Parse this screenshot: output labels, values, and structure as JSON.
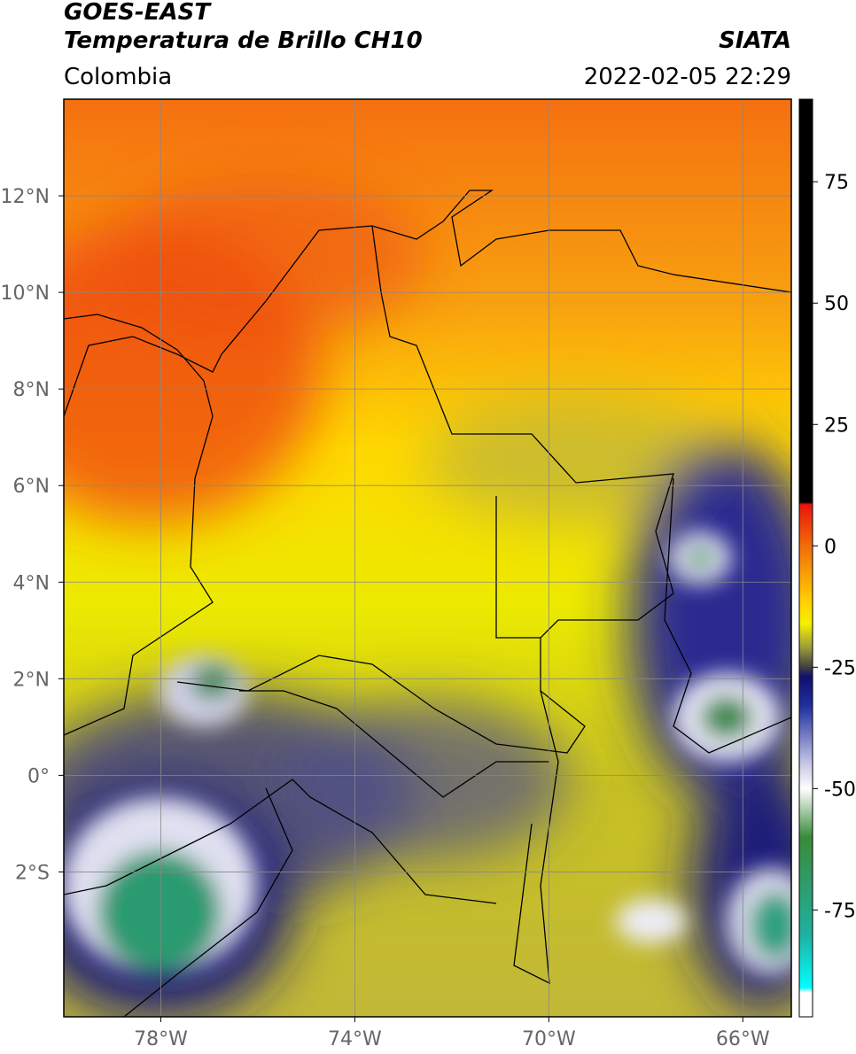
{
  "header": {
    "satellite": "GOES-EAST",
    "product": "Temperatura de Brillo CH10",
    "source": "SIATA",
    "region": "Colombia",
    "datetime": "2022-02-05 22:29"
  },
  "map": {
    "lon_lim": [
      -80,
      -65
    ],
    "lat_lim": [
      -5,
      14
    ],
    "grid": true,
    "lon_ticks": [
      {
        "value": -78,
        "label": "78°W"
      },
      {
        "value": -74,
        "label": "74°W"
      },
      {
        "value": -70,
        "label": "70°W"
      },
      {
        "value": -66,
        "label": "66°W"
      }
    ],
    "lat_ticks": [
      {
        "value": 12,
        "label": "12°N"
      },
      {
        "value": 10,
        "label": "10°N"
      },
      {
        "value": 8,
        "label": "8°N"
      },
      {
        "value": 6,
        "label": "6°N"
      },
      {
        "value": 4,
        "label": "4°N"
      },
      {
        "value": 2,
        "label": "2°N"
      },
      {
        "value": 0,
        "label": "0°"
      },
      {
        "value": -2,
        "label": "2°S"
      }
    ]
  },
  "colorbar": {
    "lim": [
      -97,
      92
    ],
    "ticks": [
      75,
      50,
      25,
      0,
      -25,
      -50,
      -75
    ],
    "stops": [
      {
        "value": 92,
        "color": "#000000"
      },
      {
        "value": 9,
        "color": "#000000"
      },
      {
        "value": 8.5,
        "color": "#e8160c"
      },
      {
        "value": 0,
        "color": "#f36b0c"
      },
      {
        "value": -12,
        "color": "#ffd400"
      },
      {
        "value": -16,
        "color": "#f5f000"
      },
      {
        "value": -21,
        "color": "#9a9a3c"
      },
      {
        "value": -25,
        "color": "#404040"
      },
      {
        "value": -27,
        "color": "#10106e"
      },
      {
        "value": -33,
        "color": "#2030a0"
      },
      {
        "value": -45,
        "color": "#c8c8e8"
      },
      {
        "value": -50,
        "color": "#ffffff"
      },
      {
        "value": -60,
        "color": "#3a8a3a"
      },
      {
        "value": -80,
        "color": "#20b0a0"
      },
      {
        "value": -91,
        "color": "#00ffff"
      },
      {
        "value": -92,
        "color": "#ffffff"
      },
      {
        "value": -97,
        "color": "#ffffff"
      }
    ]
  }
}
